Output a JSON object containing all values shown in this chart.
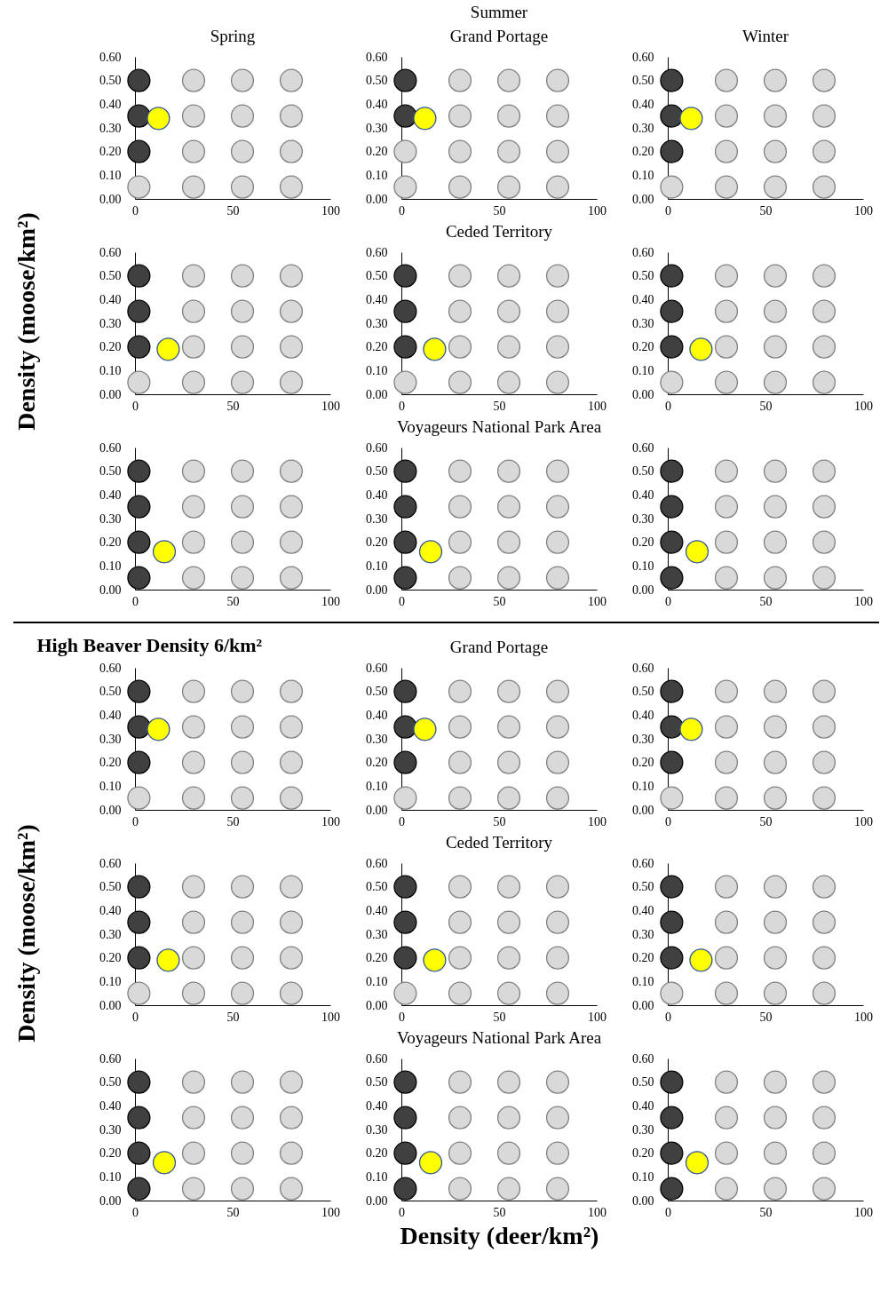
{
  "chart_data": [
    {
      "type": "scatter",
      "title": "Spring",
      "xlim": [
        0,
        100
      ],
      "xticks": [
        0,
        50,
        100
      ],
      "ylim": [
        0,
        0.6
      ],
      "yticks": [
        {
          "value": 0,
          "label": "0.00"
        },
        {
          "value": 0.1,
          "label": "0.10"
        },
        {
          "value": 0.2,
          "label": "0.20"
        },
        {
          "value": 0.3,
          "label": "0.30"
        },
        {
          "value": 0.4,
          "label": "0.40"
        },
        {
          "value": 0.5,
          "label": "0.50"
        },
        {
          "value": 0.6,
          "label": "0.60"
        }
      ],
      "marker": "circle",
      "series": [
        {
          "color": "#404040",
          "x": [
            2,
            2,
            2
          ],
          "values": [
            0.5,
            0.35,
            0.2
          ]
        },
        {
          "color": "#d9d9d9",
          "x": [
            2,
            30,
            30,
            30,
            30,
            55,
            55,
            55,
            55,
            80,
            80,
            80,
            80
          ],
          "values": [
            0.05,
            0.5,
            0.35,
            0.2,
            0.05,
            0.5,
            0.35,
            0.2,
            0.05,
            0.5,
            0.35,
            0.2,
            0.05
          ]
        },
        {
          "color": "#ffff00",
          "x": [
            12
          ],
          "values": [
            0.34
          ]
        }
      ]
    },
    {
      "type": "scatter",
      "title": "Summer",
      "subtitle": "Grand Portage",
      "xlim": [
        0,
        100
      ],
      "xticks": [
        0,
        50,
        100
      ],
      "ylim": [
        0,
        0.6
      ],
      "yticks": [
        {
          "value": 0,
          "label": "0.00"
        },
        {
          "value": 0.1,
          "label": "0.10"
        },
        {
          "value": 0.2,
          "label": "0.20"
        },
        {
          "value": 0.3,
          "label": "0.30"
        },
        {
          "value": 0.4,
          "label": "0.40"
        },
        {
          "value": 0.5,
          "label": "0.50"
        },
        {
          "value": 0.6,
          "label": "0.60"
        }
      ],
      "marker": "circle",
      "series": [
        {
          "color": "#404040",
          "x": [
            2,
            2
          ],
          "values": [
            0.5,
            0.35
          ]
        },
        {
          "color": "#d9d9d9",
          "x": [
            2,
            2,
            30,
            30,
            30,
            30,
            55,
            55,
            55,
            55,
            80,
            80,
            80,
            80
          ],
          "values": [
            0.2,
            0.05,
            0.5,
            0.35,
            0.2,
            0.05,
            0.5,
            0.35,
            0.2,
            0.05,
            0.5,
            0.35,
            0.2,
            0.05
          ]
        },
        {
          "color": "#ffff00",
          "x": [
            12
          ],
          "values": [
            0.34
          ]
        }
      ]
    },
    {
      "type": "scatter",
      "title": "Winter",
      "xlim": [
        0,
        100
      ],
      "xticks": [
        0,
        50,
        100
      ],
      "ylim": [
        0,
        0.6
      ],
      "yticks": [
        {
          "value": 0,
          "label": "0.00"
        },
        {
          "value": 0.1,
          "label": "0.10"
        },
        {
          "value": 0.2,
          "label": "0.20"
        },
        {
          "value": 0.3,
          "label": "0.30"
        },
        {
          "value": 0.4,
          "label": "0.40"
        },
        {
          "value": 0.5,
          "label": "0.50"
        },
        {
          "value": 0.6,
          "label": "0.60"
        }
      ],
      "marker": "circle",
      "series": [
        {
          "color": "#404040",
          "x": [
            2,
            2,
            2
          ],
          "values": [
            0.5,
            0.35,
            0.2
          ]
        },
        {
          "color": "#d9d9d9",
          "x": [
            2,
            30,
            30,
            30,
            30,
            55,
            55,
            55,
            55,
            80,
            80,
            80,
            80
          ],
          "values": [
            0.05,
            0.5,
            0.35,
            0.2,
            0.05,
            0.5,
            0.35,
            0.2,
            0.05,
            0.5,
            0.35,
            0.2,
            0.05
          ]
        },
        {
          "color": "#ffff00",
          "x": [
            12
          ],
          "values": [
            0.34
          ]
        }
      ]
    },
    {
      "type": "scatter",
      "ylabel": "Density (moose/km²)",
      "xlim": [
        0,
        100
      ],
      "xticks": [
        0,
        50,
        100
      ],
      "ylim": [
        0,
        0.6
      ],
      "yticks": [
        {
          "value": 0,
          "label": "0.00"
        },
        {
          "value": 0.1,
          "label": "0.10"
        },
        {
          "value": 0.2,
          "label": "0.20"
        },
        {
          "value": 0.3,
          "label": "0.30"
        },
        {
          "value": 0.4,
          "label": "0.40"
        },
        {
          "value": 0.5,
          "label": "0.50"
        },
        {
          "value": 0.6,
          "label": "0.60"
        }
      ],
      "marker": "circle",
      "series": [
        {
          "color": "#404040",
          "x": [
            2,
            2,
            2
          ],
          "values": [
            0.5,
            0.35,
            0.2
          ]
        },
        {
          "color": "#d9d9d9",
          "x": [
            2,
            30,
            30,
            30,
            30,
            55,
            55,
            55,
            55,
            80,
            80,
            80,
            80
          ],
          "values": [
            0.05,
            0.5,
            0.35,
            0.2,
            0.05,
            0.5,
            0.35,
            0.2,
            0.05,
            0.5,
            0.35,
            0.2,
            0.05
          ]
        },
        {
          "color": "#ffff00",
          "x": [
            17
          ],
          "values": [
            0.19
          ]
        }
      ]
    },
    {
      "type": "scatter",
      "title": "Ceded Territory",
      "xlim": [
        0,
        100
      ],
      "xticks": [
        0,
        50,
        100
      ],
      "ylim": [
        0,
        0.6
      ],
      "yticks": [
        {
          "value": 0,
          "label": "0.00"
        },
        {
          "value": 0.1,
          "label": "0.10"
        },
        {
          "value": 0.2,
          "label": "0.20"
        },
        {
          "value": 0.3,
          "label": "0.30"
        },
        {
          "value": 0.4,
          "label": "0.40"
        },
        {
          "value": 0.5,
          "label": "0.50"
        },
        {
          "value": 0.6,
          "label": "0.60"
        }
      ],
      "marker": "circle",
      "series": [
        {
          "color": "#404040",
          "x": [
            2,
            2,
            2
          ],
          "values": [
            0.5,
            0.35,
            0.2
          ]
        },
        {
          "color": "#d9d9d9",
          "x": [
            2,
            30,
            30,
            30,
            30,
            55,
            55,
            55,
            55,
            80,
            80,
            80,
            80
          ],
          "values": [
            0.05,
            0.5,
            0.35,
            0.2,
            0.05,
            0.5,
            0.35,
            0.2,
            0.05,
            0.5,
            0.35,
            0.2,
            0.05
          ]
        },
        {
          "color": "#ffff00",
          "x": [
            17
          ],
          "values": [
            0.19
          ]
        }
      ]
    },
    {
      "type": "scatter",
      "xlim": [
        0,
        100
      ],
      "xticks": [
        0,
        50,
        100
      ],
      "ylim": [
        0,
        0.6
      ],
      "yticks": [
        {
          "value": 0,
          "label": "0.00"
        },
        {
          "value": 0.1,
          "label": "0.10"
        },
        {
          "value": 0.2,
          "label": "0.20"
        },
        {
          "value": 0.3,
          "label": "0.30"
        },
        {
          "value": 0.4,
          "label": "0.40"
        },
        {
          "value": 0.5,
          "label": "0.50"
        },
        {
          "value": 0.6,
          "label": "0.60"
        }
      ],
      "marker": "circle",
      "series": [
        {
          "color": "#404040",
          "x": [
            2,
            2,
            2
          ],
          "values": [
            0.5,
            0.35,
            0.2
          ]
        },
        {
          "color": "#d9d9d9",
          "x": [
            2,
            30,
            30,
            30,
            30,
            55,
            55,
            55,
            55,
            80,
            80,
            80,
            80
          ],
          "values": [
            0.05,
            0.5,
            0.35,
            0.2,
            0.05,
            0.5,
            0.35,
            0.2,
            0.05,
            0.5,
            0.35,
            0.2,
            0.05
          ]
        },
        {
          "color": "#ffff00",
          "x": [
            17
          ],
          "values": [
            0.19
          ]
        }
      ]
    },
    {
      "type": "scatter",
      "xlim": [
        0,
        100
      ],
      "xticks": [
        0,
        50,
        100
      ],
      "ylim": [
        0,
        0.6
      ],
      "yticks": [
        {
          "value": 0,
          "label": "0.00"
        },
        {
          "value": 0.1,
          "label": "0.10"
        },
        {
          "value": 0.2,
          "label": "0.20"
        },
        {
          "value": 0.3,
          "label": "0.30"
        },
        {
          "value": 0.4,
          "label": "0.40"
        },
        {
          "value": 0.5,
          "label": "0.50"
        },
        {
          "value": 0.6,
          "label": "0.60"
        }
      ],
      "marker": "circle",
      "series": [
        {
          "color": "#404040",
          "x": [
            2,
            2,
            2,
            2
          ],
          "values": [
            0.5,
            0.35,
            0.2,
            0.05
          ]
        },
        {
          "color": "#d9d9d9",
          "x": [
            30,
            30,
            30,
            30,
            55,
            55,
            55,
            55,
            80,
            80,
            80,
            80
          ],
          "values": [
            0.5,
            0.35,
            0.2,
            0.05,
            0.5,
            0.35,
            0.2,
            0.05,
            0.5,
            0.35,
            0.2,
            0.05
          ]
        },
        {
          "color": "#ffff00",
          "x": [
            15
          ],
          "values": [
            0.16
          ]
        }
      ]
    },
    {
      "type": "scatter",
      "title": "Voyageurs National Park Area",
      "xlim": [
        0,
        100
      ],
      "xticks": [
        0,
        50,
        100
      ],
      "ylim": [
        0,
        0.6
      ],
      "yticks": [
        {
          "value": 0,
          "label": "0.00"
        },
        {
          "value": 0.1,
          "label": "0.10"
        },
        {
          "value": 0.2,
          "label": "0.20"
        },
        {
          "value": 0.3,
          "label": "0.30"
        },
        {
          "value": 0.4,
          "label": "0.40"
        },
        {
          "value": 0.5,
          "label": "0.50"
        },
        {
          "value": 0.6,
          "label": "0.60"
        }
      ],
      "marker": "circle",
      "series": [
        {
          "color": "#404040",
          "x": [
            2,
            2,
            2,
            2
          ],
          "values": [
            0.5,
            0.35,
            0.2,
            0.05
          ]
        },
        {
          "color": "#d9d9d9",
          "x": [
            30,
            30,
            30,
            30,
            55,
            55,
            55,
            55,
            80,
            80,
            80,
            80
          ],
          "values": [
            0.5,
            0.35,
            0.2,
            0.05,
            0.5,
            0.35,
            0.2,
            0.05,
            0.5,
            0.35,
            0.2,
            0.05
          ]
        },
        {
          "color": "#ffff00",
          "x": [
            15
          ],
          "values": [
            0.16
          ]
        }
      ]
    },
    {
      "type": "scatter",
      "xlim": [
        0,
        100
      ],
      "xticks": [
        0,
        50,
        100
      ],
      "ylim": [
        0,
        0.6
      ],
      "yticks": [
        {
          "value": 0,
          "label": "0.00"
        },
        {
          "value": 0.1,
          "label": "0.10"
        },
        {
          "value": 0.2,
          "label": "0.20"
        },
        {
          "value": 0.3,
          "label": "0.30"
        },
        {
          "value": 0.4,
          "label": "0.40"
        },
        {
          "value": 0.5,
          "label": "0.50"
        },
        {
          "value": 0.6,
          "label": "0.60"
        }
      ],
      "marker": "circle",
      "series": [
        {
          "color": "#404040",
          "x": [
            2,
            2,
            2,
            2
          ],
          "values": [
            0.5,
            0.35,
            0.2,
            0.05
          ]
        },
        {
          "color": "#d9d9d9",
          "x": [
            30,
            30,
            30,
            30,
            55,
            55,
            55,
            55,
            80,
            80,
            80,
            80
          ],
          "values": [
            0.5,
            0.35,
            0.2,
            0.05,
            0.5,
            0.35,
            0.2,
            0.05,
            0.5,
            0.35,
            0.2,
            0.05
          ]
        },
        {
          "color": "#ffff00",
          "x": [
            15
          ],
          "values": [
            0.16
          ]
        }
      ]
    },
    {
      "type": "scatter",
      "annotations": [
        "High Beaver Density 6/km²"
      ],
      "xlim": [
        0,
        100
      ],
      "xticks": [
        0,
        50,
        100
      ],
      "ylim": [
        0,
        0.6
      ],
      "yticks": [
        {
          "value": 0,
          "label": "0.00"
        },
        {
          "value": 0.1,
          "label": "0.10"
        },
        {
          "value": 0.2,
          "label": "0.20"
        },
        {
          "value": 0.3,
          "label": "0.30"
        },
        {
          "value": 0.4,
          "label": "0.40"
        },
        {
          "value": 0.5,
          "label": "0.50"
        },
        {
          "value": 0.6,
          "label": "0.60"
        }
      ],
      "marker": "circle",
      "series": [
        {
          "color": "#404040",
          "x": [
            2,
            2,
            2
          ],
          "values": [
            0.5,
            0.35,
            0.2
          ]
        },
        {
          "color": "#d9d9d9",
          "x": [
            2,
            30,
            30,
            30,
            30,
            55,
            55,
            55,
            55,
            80,
            80,
            80,
            80
          ],
          "values": [
            0.05,
            0.5,
            0.35,
            0.2,
            0.05,
            0.5,
            0.35,
            0.2,
            0.05,
            0.5,
            0.35,
            0.2,
            0.05
          ]
        },
        {
          "color": "#ffff00",
          "x": [
            12
          ],
          "values": [
            0.34
          ]
        }
      ]
    },
    {
      "type": "scatter",
      "title": "Grand Portage",
      "xlim": [
        0,
        100
      ],
      "xticks": [
        0,
        50,
        100
      ],
      "ylim": [
        0,
        0.6
      ],
      "yticks": [
        {
          "value": 0,
          "label": "0.00"
        },
        {
          "value": 0.1,
          "label": "0.10"
        },
        {
          "value": 0.2,
          "label": "0.20"
        },
        {
          "value": 0.3,
          "label": "0.30"
        },
        {
          "value": 0.4,
          "label": "0.40"
        },
        {
          "value": 0.5,
          "label": "0.50"
        },
        {
          "value": 0.6,
          "label": "0.60"
        }
      ],
      "marker": "circle",
      "series": [
        {
          "color": "#404040",
          "x": [
            2,
            2,
            2
          ],
          "values": [
            0.5,
            0.35,
            0.2
          ]
        },
        {
          "color": "#d9d9d9",
          "x": [
            2,
            30,
            30,
            30,
            30,
            55,
            55,
            55,
            55,
            80,
            80,
            80,
            80
          ],
          "values": [
            0.05,
            0.5,
            0.35,
            0.2,
            0.05,
            0.5,
            0.35,
            0.2,
            0.05,
            0.5,
            0.35,
            0.2,
            0.05
          ]
        },
        {
          "color": "#ffff00",
          "x": [
            12
          ],
          "values": [
            0.34
          ]
        }
      ]
    },
    {
      "type": "scatter",
      "xlim": [
        0,
        100
      ],
      "xticks": [
        0,
        50,
        100
      ],
      "ylim": [
        0,
        0.6
      ],
      "yticks": [
        {
          "value": 0,
          "label": "0.00"
        },
        {
          "value": 0.1,
          "label": "0.10"
        },
        {
          "value": 0.2,
          "label": "0.20"
        },
        {
          "value": 0.3,
          "label": "0.30"
        },
        {
          "value": 0.4,
          "label": "0.40"
        },
        {
          "value": 0.5,
          "label": "0.50"
        },
        {
          "value": 0.6,
          "label": "0.60"
        }
      ],
      "marker": "circle",
      "series": [
        {
          "color": "#404040",
          "x": [
            2,
            2,
            2
          ],
          "values": [
            0.5,
            0.35,
            0.2
          ]
        },
        {
          "color": "#d9d9d9",
          "x": [
            2,
            30,
            30,
            30,
            30,
            55,
            55,
            55,
            55,
            80,
            80,
            80,
            80
          ],
          "values": [
            0.05,
            0.5,
            0.35,
            0.2,
            0.05,
            0.5,
            0.35,
            0.2,
            0.05,
            0.5,
            0.35,
            0.2,
            0.05
          ]
        },
        {
          "color": "#ffff00",
          "x": [
            12
          ],
          "values": [
            0.34
          ]
        }
      ]
    },
    {
      "type": "scatter",
      "ylabel": "Density (moose/km²)",
      "xlim": [
        0,
        100
      ],
      "xticks": [
        0,
        50,
        100
      ],
      "ylim": [
        0,
        0.6
      ],
      "yticks": [
        {
          "value": 0,
          "label": "0.00"
        },
        {
          "value": 0.1,
          "label": "0.10"
        },
        {
          "value": 0.2,
          "label": "0.20"
        },
        {
          "value": 0.3,
          "label": "0.30"
        },
        {
          "value": 0.4,
          "label": "0.40"
        },
        {
          "value": 0.5,
          "label": "0.50"
        },
        {
          "value": 0.6,
          "label": "0.60"
        }
      ],
      "marker": "circle",
      "series": [
        {
          "color": "#404040",
          "x": [
            2,
            2,
            2
          ],
          "values": [
            0.5,
            0.35,
            0.2
          ]
        },
        {
          "color": "#d9d9d9",
          "x": [
            2,
            30,
            30,
            30,
            30,
            55,
            55,
            55,
            55,
            80,
            80,
            80,
            80
          ],
          "values": [
            0.05,
            0.5,
            0.35,
            0.2,
            0.05,
            0.5,
            0.35,
            0.2,
            0.05,
            0.5,
            0.35,
            0.2,
            0.05
          ]
        },
        {
          "color": "#ffff00",
          "x": [
            17
          ],
          "values": [
            0.19
          ]
        }
      ]
    },
    {
      "type": "scatter",
      "title": "Ceded Territory",
      "xlim": [
        0,
        100
      ],
      "xticks": [
        0,
        50,
        100
      ],
      "ylim": [
        0,
        0.6
      ],
      "yticks": [
        {
          "value": 0,
          "label": "0.00"
        },
        {
          "value": 0.1,
          "label": "0.10"
        },
        {
          "value": 0.2,
          "label": "0.20"
        },
        {
          "value": 0.3,
          "label": "0.30"
        },
        {
          "value": 0.4,
          "label": "0.40"
        },
        {
          "value": 0.5,
          "label": "0.50"
        },
        {
          "value": 0.6,
          "label": "0.60"
        }
      ],
      "marker": "circle",
      "series": [
        {
          "color": "#404040",
          "x": [
            2,
            2,
            2
          ],
          "values": [
            0.5,
            0.35,
            0.2
          ]
        },
        {
          "color": "#d9d9d9",
          "x": [
            2,
            30,
            30,
            30,
            30,
            55,
            55,
            55,
            55,
            80,
            80,
            80,
            80
          ],
          "values": [
            0.05,
            0.5,
            0.35,
            0.2,
            0.05,
            0.5,
            0.35,
            0.2,
            0.05,
            0.5,
            0.35,
            0.2,
            0.05
          ]
        },
        {
          "color": "#ffff00",
          "x": [
            17
          ],
          "values": [
            0.19
          ]
        }
      ]
    },
    {
      "type": "scatter",
      "xlim": [
        0,
        100
      ],
      "xticks": [
        0,
        50,
        100
      ],
      "ylim": [
        0,
        0.6
      ],
      "yticks": [
        {
          "value": 0,
          "label": "0.00"
        },
        {
          "value": 0.1,
          "label": "0.10"
        },
        {
          "value": 0.2,
          "label": "0.20"
        },
        {
          "value": 0.3,
          "label": "0.30"
        },
        {
          "value": 0.4,
          "label": "0.40"
        },
        {
          "value": 0.5,
          "label": "0.50"
        },
        {
          "value": 0.6,
          "label": "0.60"
        }
      ],
      "marker": "circle",
      "series": [
        {
          "color": "#404040",
          "x": [
            2,
            2,
            2
          ],
          "values": [
            0.5,
            0.35,
            0.2
          ]
        },
        {
          "color": "#d9d9d9",
          "x": [
            2,
            30,
            30,
            30,
            30,
            55,
            55,
            55,
            55,
            80,
            80,
            80,
            80
          ],
          "values": [
            0.05,
            0.5,
            0.35,
            0.2,
            0.05,
            0.5,
            0.35,
            0.2,
            0.05,
            0.5,
            0.35,
            0.2,
            0.05
          ]
        },
        {
          "color": "#ffff00",
          "x": [
            17
          ],
          "values": [
            0.19
          ]
        }
      ]
    },
    {
      "type": "scatter",
      "xlim": [
        0,
        100
      ],
      "xticks": [
        0,
        50,
        100
      ],
      "ylim": [
        0,
        0.6
      ],
      "yticks": [
        {
          "value": 0,
          "label": "0.00"
        },
        {
          "value": 0.1,
          "label": "0.10"
        },
        {
          "value": 0.2,
          "label": "0.20"
        },
        {
          "value": 0.3,
          "label": "0.30"
        },
        {
          "value": 0.4,
          "label": "0.40"
        },
        {
          "value": 0.5,
          "label": "0.50"
        },
        {
          "value": 0.6,
          "label": "0.60"
        }
      ],
      "marker": "circle",
      "series": [
        {
          "color": "#404040",
          "x": [
            2,
            2,
            2,
            2
          ],
          "values": [
            0.5,
            0.35,
            0.2,
            0.05
          ]
        },
        {
          "color": "#d9d9d9",
          "x": [
            30,
            30,
            30,
            30,
            55,
            55,
            55,
            55,
            80,
            80,
            80,
            80
          ],
          "values": [
            0.5,
            0.35,
            0.2,
            0.05,
            0.5,
            0.35,
            0.2,
            0.05,
            0.5,
            0.35,
            0.2,
            0.05
          ]
        },
        {
          "color": "#ffff00",
          "x": [
            15
          ],
          "values": [
            0.16
          ]
        }
      ]
    },
    {
      "type": "scatter",
      "title": "Voyageurs National Park Area",
      "xlabel": "Density (deer/km²)",
      "xlim": [
        0,
        100
      ],
      "xticks": [
        0,
        50,
        100
      ],
      "ylim": [
        0,
        0.6
      ],
      "yticks": [
        {
          "value": 0,
          "label": "0.00"
        },
        {
          "value": 0.1,
          "label": "0.10"
        },
        {
          "value": 0.2,
          "label": "0.20"
        },
        {
          "value": 0.3,
          "label": "0.30"
        },
        {
          "value": 0.4,
          "label": "0.40"
        },
        {
          "value": 0.5,
          "label": "0.50"
        },
        {
          "value": 0.6,
          "label": "0.60"
        }
      ],
      "marker": "circle",
      "series": [
        {
          "color": "#404040",
          "x": [
            2,
            2,
            2,
            2
          ],
          "values": [
            0.5,
            0.35,
            0.2,
            0.05
          ]
        },
        {
          "color": "#d9d9d9",
          "x": [
            30,
            30,
            30,
            30,
            55,
            55,
            55,
            55,
            80,
            80,
            80,
            80
          ],
          "values": [
            0.5,
            0.35,
            0.2,
            0.05,
            0.5,
            0.35,
            0.2,
            0.05,
            0.5,
            0.35,
            0.2,
            0.05
          ]
        },
        {
          "color": "#ffff00",
          "x": [
            15
          ],
          "values": [
            0.16
          ]
        }
      ]
    },
    {
      "type": "scatter",
      "xlim": [
        0,
        100
      ],
      "xticks": [
        0,
        50,
        100
      ],
      "ylim": [
        0,
        0.6
      ],
      "yticks": [
        {
          "value": 0,
          "label": "0.00"
        },
        {
          "value": 0.1,
          "label": "0.10"
        },
        {
          "value": 0.2,
          "label": "0.20"
        },
        {
          "value": 0.3,
          "label": "0.30"
        },
        {
          "value": 0.4,
          "label": "0.40"
        },
        {
          "value": 0.5,
          "label": "0.50"
        },
        {
          "value": 0.6,
          "label": "0.60"
        }
      ],
      "marker": "circle",
      "series": [
        {
          "color": "#404040",
          "x": [
            2,
            2,
            2,
            2
          ],
          "values": [
            0.5,
            0.35,
            0.2,
            0.05
          ]
        },
        {
          "color": "#d9d9d9",
          "x": [
            30,
            30,
            30,
            30,
            55,
            55,
            55,
            55,
            80,
            80,
            80,
            80
          ],
          "values": [
            0.5,
            0.35,
            0.2,
            0.05,
            0.5,
            0.35,
            0.2,
            0.05,
            0.5,
            0.35,
            0.2,
            0.05
          ]
        },
        {
          "color": "#ffff00",
          "x": [
            15
          ],
          "values": [
            0.16
          ]
        }
      ]
    }
  ]
}
